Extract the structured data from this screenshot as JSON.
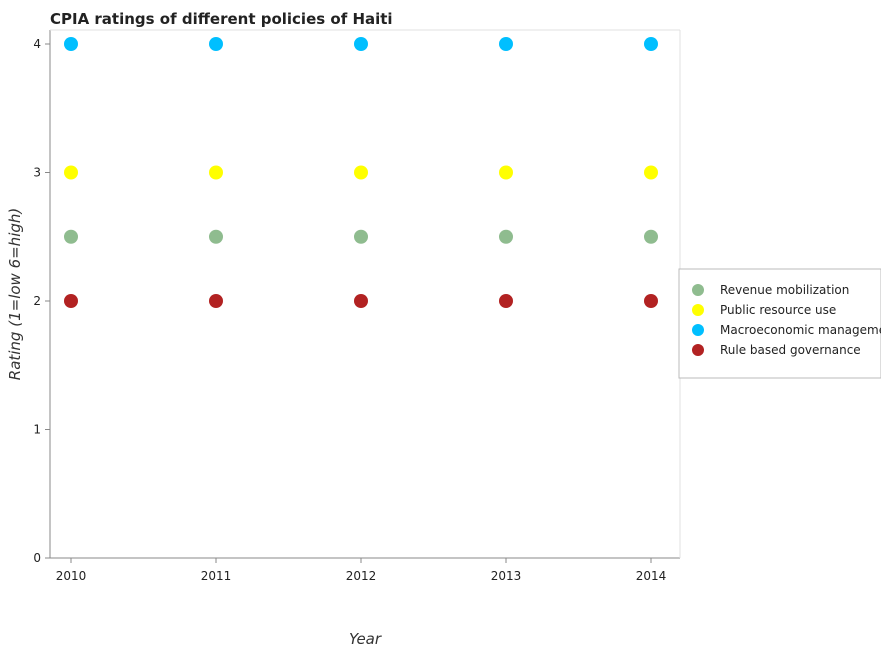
{
  "chart_data": {
    "type": "scatter",
    "title": "CPIA ratings of different policies of Haiti",
    "xlabel": "Year",
    "ylabel": "Rating (1=low 6=high)",
    "x": [
      "2010",
      "2011",
      "2012",
      "2013",
      "2014"
    ],
    "ylim": [
      0,
      4
    ],
    "yticks": [
      "0",
      "1",
      "2",
      "3",
      "4"
    ],
    "grid": false,
    "legend_position": "right",
    "series": [
      {
        "name": "Revenue mobilization",
        "color": "#8fbc8f",
        "values": [
          2.5,
          2.5,
          2.5,
          2.5,
          2.5
        ]
      },
      {
        "name": "Public resource use",
        "color": "#ffff00",
        "values": [
          3,
          3,
          3,
          3,
          3
        ]
      },
      {
        "name": "Macroeconomic management",
        "color": "#00bfff",
        "values": [
          4,
          4,
          4,
          4,
          4
        ]
      },
      {
        "name": "Rule based governance",
        "color": "#b22222",
        "values": [
          2,
          2,
          2,
          2,
          2
        ]
      }
    ]
  }
}
